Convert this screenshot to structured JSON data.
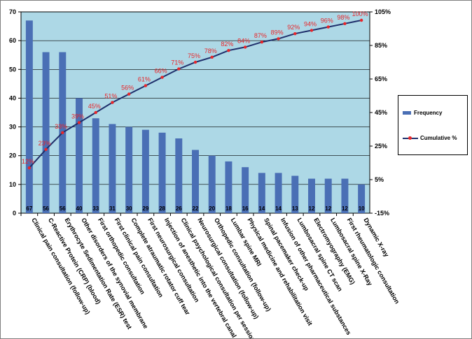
{
  "chart_data": {
    "type": "bar",
    "categories": [
      "Clinical pain consultation (follow-up)",
      "C-Reactive Protein (CRP) (blood)",
      "Erythrocyte Sedimentation Rate (ESR) test",
      "Other disorders of the synovial membrane",
      "First orthopedic consultation",
      "First clinical pain consultation",
      "Complete atraumatic rotator cuff tear",
      "First neurosurgical consultation",
      "Injection of anesthetic into the vertebral canal",
      "Clinical psychological consultation per session",
      "Neurosurgical consultation (follow-up)",
      "Orthopedic consultation (follow-up)",
      "Lumbar spine MRI",
      "Physical medicine and rehabilitation visit",
      "Spinal pacemaker check-up",
      "Infusion of other pharmaceutical substances",
      "Lumbosacral spine CT scan",
      "Electromyography (EMG)",
      "Lumbosacral spine X-Ray",
      "First rheumatologic consultation",
      "Dynamic X-ray"
    ],
    "series": [
      {
        "name": "Frequency",
        "values": [
          67,
          56,
          56,
          40,
          33,
          31,
          30,
          29,
          28,
          26,
          22,
          20,
          18,
          16,
          14,
          14,
          13,
          12,
          12,
          12,
          10
        ],
        "labels": [
          "67",
          "56",
          "56",
          "40",
          "33",
          "31",
          "30",
          "29",
          "28",
          "26",
          "22",
          "20",
          "18",
          "16",
          "14",
          "14",
          "13",
          "12",
          "12",
          "12",
          "10"
        ]
      },
      {
        "name": "Cumulative %",
        "values": [
          12,
          23,
          33,
          39,
          45,
          51,
          56,
          61,
          66,
          71,
          75,
          78,
          82,
          84,
          87,
          89,
          92,
          94,
          96,
          98,
          100
        ],
        "labels": [
          "12%",
          "23%",
          "33%",
          "39%",
          "45%",
          "51%",
          "56%",
          "61%",
          "66%",
          "71%",
          "75%",
          "78%",
          "82%",
          "84%",
          "87%",
          "89%",
          "92%",
          "94%",
          "96%",
          "98%",
          "100%"
        ]
      }
    ],
    "ylim": [
      0,
      70
    ],
    "y_ticks": [
      "0",
      "10",
      "20",
      "30",
      "40",
      "50",
      "60",
      "70"
    ],
    "y2lim": [
      -15,
      105
    ],
    "y2_ticks": [
      "-15%",
      "5%",
      "25%",
      "45%",
      "65%",
      "85%",
      "105%"
    ],
    "grid": true,
    "legend": "right",
    "colors": {
      "plot_bg": "#add8e6",
      "bar": "#4a6fb5",
      "line": "#1f2f6b",
      "marker": "#e8262a",
      "gridline": "#000000"
    }
  }
}
